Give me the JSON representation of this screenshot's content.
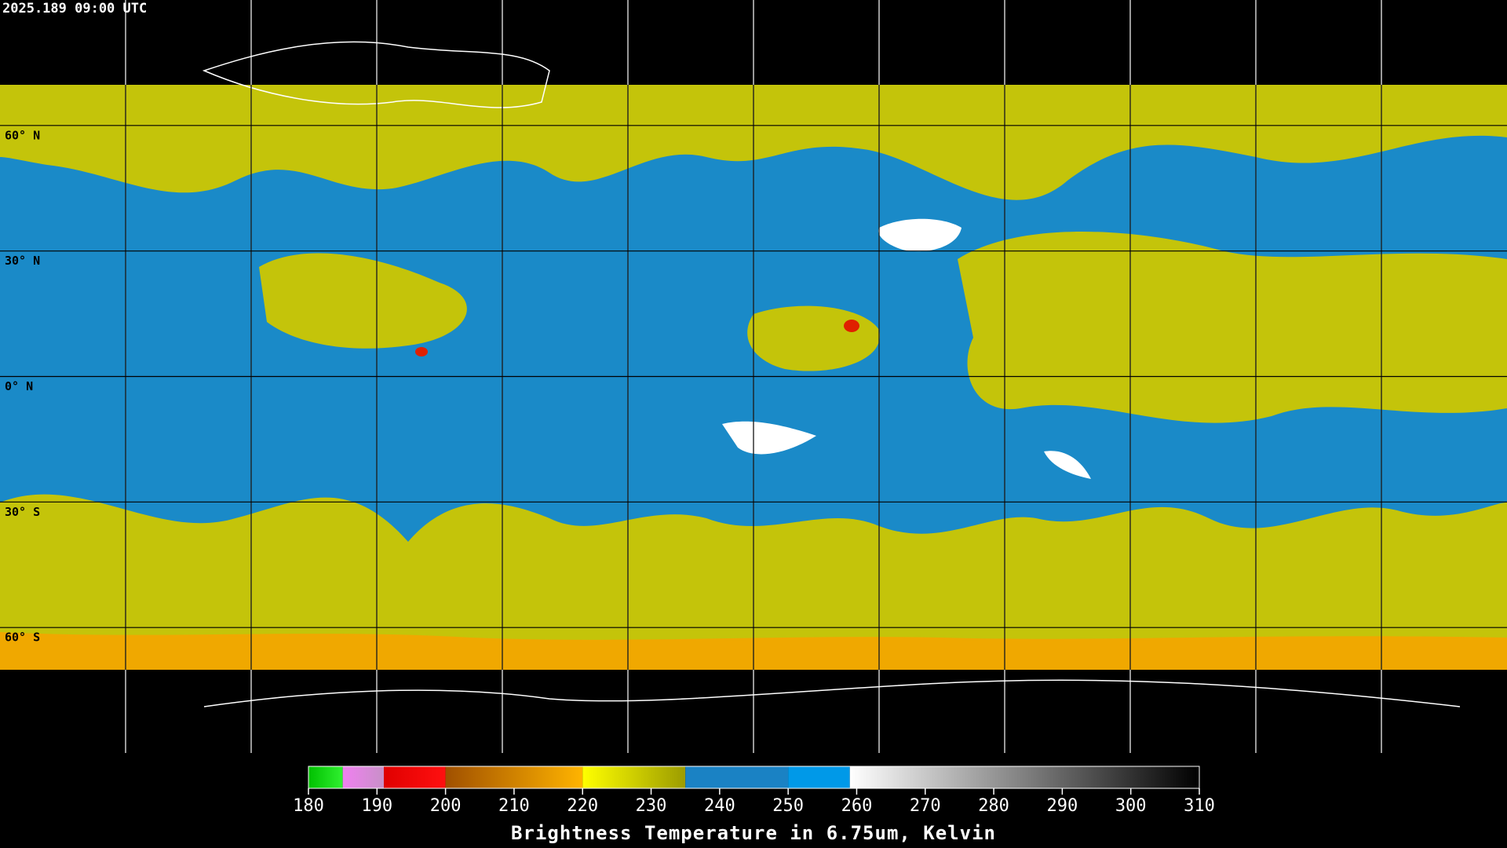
{
  "header": {
    "timestamp": "2025.189 09:00 UTC"
  },
  "map": {
    "lon_range": [
      -180,
      180
    ],
    "lat_range": [
      90,
      -90
    ],
    "lon_grid": [
      -150,
      -120,
      -90,
      -60,
      -30,
      0,
      30,
      60,
      90,
      120,
      150
    ],
    "lat_ticks": [
      {
        "value": 60,
        "label": "60° N"
      },
      {
        "value": 30,
        "label": "30° N"
      },
      {
        "value": 0,
        "label": "0° N"
      },
      {
        "value": -30,
        "label": "30° S"
      },
      {
        "value": -60,
        "label": "60° S"
      }
    ]
  },
  "colorbar": {
    "title": "Brightness Temperature in 6.75um, Kelvin",
    "range": [
      180,
      310
    ],
    "ticks": [
      180,
      190,
      200,
      210,
      220,
      230,
      240,
      250,
      260,
      270,
      280,
      290,
      300,
      310
    ],
    "stops": [
      {
        "from": 180,
        "to": 185,
        "colors": [
          "#00c000",
          "#30f030"
        ]
      },
      {
        "from": 185,
        "to": 191,
        "colors": [
          "#f080f0",
          "#c890c8"
        ]
      },
      {
        "from": 191,
        "to": 200,
        "colors": [
          "#e00000",
          "#ff1010"
        ]
      },
      {
        "from": 200,
        "to": 220,
        "colors": [
          "#a05000",
          "#ffb400"
        ]
      },
      {
        "from": 220,
        "to": 235,
        "colors": [
          "#ffff00",
          "#9c9c00"
        ]
      },
      {
        "from": 235,
        "to": 250,
        "colors": [
          "#1a82c4",
          "#1a82c4"
        ]
      },
      {
        "from": 250,
        "to": 259,
        "colors": [
          "#0099e8",
          "#0099e8"
        ]
      },
      {
        "from": 259,
        "to": 310,
        "colors": [
          "#ffffff",
          "#000000"
        ]
      }
    ]
  }
}
